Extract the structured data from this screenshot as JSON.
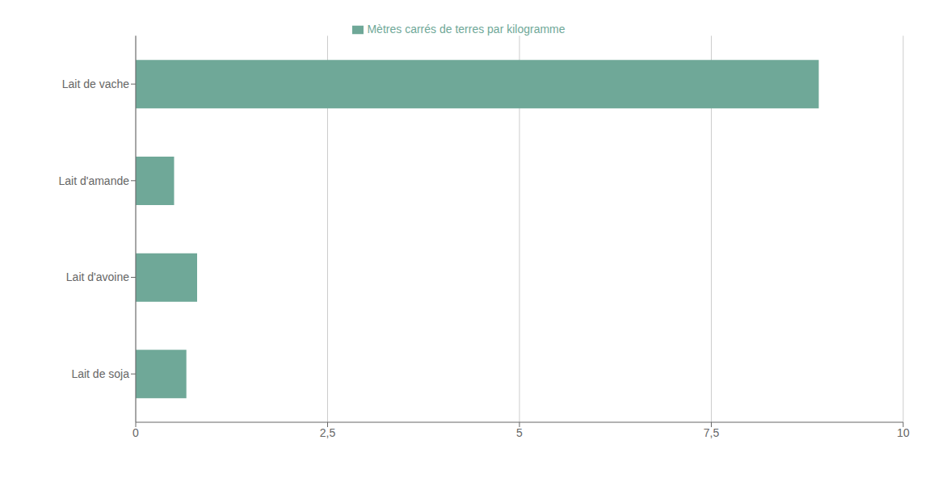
{
  "chart_data": {
    "type": "bar",
    "orientation": "horizontal",
    "categories": [
      "Lait de vache",
      "Lait d'amande",
      "Lait d'avoine",
      "Lait de soja"
    ],
    "series": [
      {
        "name": "Mètres carrés de terres par kilogramme",
        "color": "#6fa898",
        "values": [
          8.9,
          0.5,
          0.8,
          0.66
        ]
      }
    ],
    "xlim": [
      0,
      10
    ],
    "xticks": [
      0,
      {
        "value": 2.5,
        "label": "2,5"
      },
      5,
      {
        "value": 7.5,
        "label": "7,5"
      },
      10
    ],
    "grid": "x",
    "legend": "top"
  }
}
